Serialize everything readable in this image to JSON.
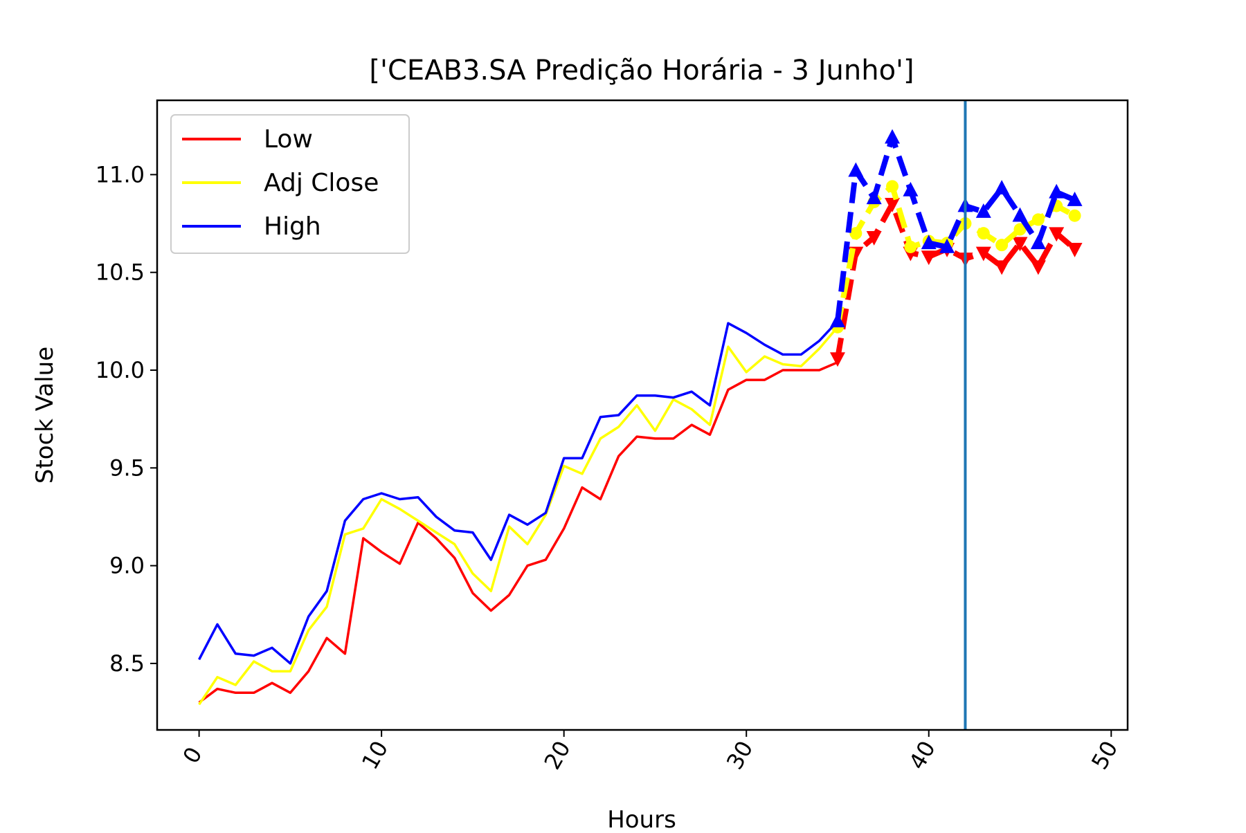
{
  "chart_data": {
    "type": "line",
    "title": "['CEAB3.SA Predição Horária - 3 Junho']",
    "xlabel": "Hours",
    "ylabel": "Stock Value",
    "xlim": [
      -2.3,
      50.9
    ],
    "ylim": [
      8.16,
      11.38
    ],
    "xticks": [
      0,
      10,
      20,
      30,
      40,
      50
    ],
    "yticks": [
      8.5,
      9.0,
      9.5,
      10.0,
      10.5,
      11.0
    ],
    "xtick_labels": [
      "0",
      "10",
      "20",
      "30",
      "40",
      "50"
    ],
    "ytick_labels": [
      "8.5",
      "9.0",
      "9.5",
      "10.0",
      "10.5",
      "11.0"
    ],
    "legend_position": "upper-left",
    "grid": false,
    "vertical_line": {
      "x": 42,
      "color": "#1f77b4"
    },
    "x": [
      0,
      1,
      2,
      3,
      4,
      5,
      6,
      7,
      8,
      9,
      10,
      11,
      12,
      13,
      14,
      15,
      16,
      17,
      18,
      19,
      20,
      21,
      22,
      23,
      24,
      25,
      26,
      27,
      28,
      29,
      30,
      31,
      32,
      33,
      34,
      35
    ],
    "series": [
      {
        "name": "Low",
        "color": "#ff0000",
        "marker": "down-triangle",
        "values": [
          8.3,
          8.37,
          8.35,
          8.35,
          8.4,
          8.35,
          8.46,
          8.63,
          8.55,
          9.14,
          9.07,
          9.01,
          9.22,
          9.14,
          9.04,
          8.86,
          8.77,
          8.85,
          9.0,
          9.03,
          9.19,
          9.4,
          9.34,
          9.56,
          9.66,
          9.65,
          9.65,
          9.72,
          9.67,
          9.9,
          9.95,
          9.95,
          10.0,
          10.0,
          10.0,
          10.04
        ],
        "forecast_x": [
          35,
          36,
          37,
          38,
          39,
          40,
          41,
          42,
          43,
          44,
          45,
          46,
          47,
          48
        ],
        "forecast_values": [
          10.06,
          10.6,
          10.68,
          10.85,
          10.6,
          10.58,
          10.62,
          10.57,
          10.6,
          10.53,
          10.65,
          10.53,
          10.7,
          10.62
        ]
      },
      {
        "name": "Adj Close",
        "color": "#ffff00",
        "marker": "circle",
        "values": [
          8.29,
          8.43,
          8.39,
          8.51,
          8.46,
          8.46,
          8.67,
          8.79,
          9.16,
          9.19,
          9.34,
          9.29,
          9.23,
          9.17,
          9.11,
          8.96,
          8.87,
          9.2,
          9.11,
          9.26,
          9.51,
          9.47,
          9.65,
          9.71,
          9.82,
          9.69,
          9.85,
          9.8,
          9.72,
          10.12,
          9.99,
          10.07,
          10.03,
          10.02,
          10.11,
          10.22
        ],
        "forecast_x": [
          35,
          36,
          37,
          38,
          39,
          40,
          41,
          42,
          43,
          44,
          45,
          46,
          47,
          48
        ],
        "forecast_values": [
          10.22,
          10.7,
          10.86,
          10.94,
          10.63,
          10.66,
          10.65,
          10.75,
          10.7,
          10.64,
          10.72,
          10.77,
          10.84,
          10.79
        ]
      },
      {
        "name": "High",
        "color": "#0000ff",
        "marker": "up-triangle",
        "values": [
          8.52,
          8.7,
          8.55,
          8.54,
          8.58,
          8.5,
          8.74,
          8.87,
          9.23,
          9.34,
          9.37,
          9.34,
          9.35,
          9.25,
          9.18,
          9.17,
          9.03,
          9.26,
          9.21,
          9.27,
          9.55,
          9.55,
          9.76,
          9.77,
          9.87,
          9.87,
          9.86,
          9.89,
          9.82,
          10.24,
          10.19,
          10.13,
          10.08,
          10.08,
          10.15,
          10.25
        ],
        "forecast_x": [
          35,
          36,
          37,
          38,
          39,
          40,
          41,
          42,
          43,
          44,
          45,
          46,
          47,
          48
        ],
        "forecast_values": [
          10.25,
          11.02,
          10.88,
          11.19,
          10.92,
          10.65,
          10.63,
          10.84,
          10.81,
          10.93,
          10.79,
          10.65,
          10.91,
          10.87
        ]
      }
    ]
  }
}
